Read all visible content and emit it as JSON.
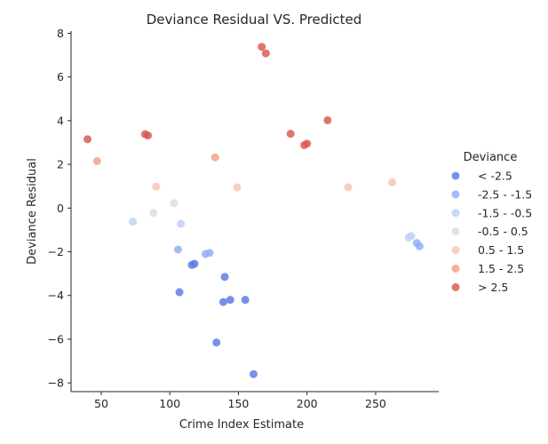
{
  "chart_data": {
    "type": "scatter",
    "title": "Deviance Residual VS. Predicted",
    "xlabel": "Crime Index Estimate",
    "ylabel": "Deviance Residual",
    "xlim": [
      28,
      296
    ],
    "ylim": [
      -8.4,
      8.1
    ],
    "xticks": [
      50,
      100,
      150,
      200,
      250
    ],
    "yticks": [
      -8,
      -6,
      -4,
      -2,
      0,
      2,
      4,
      6,
      8
    ],
    "grid": false,
    "legend": {
      "title": "Deviance",
      "placement": "right",
      "entries": [
        {
          "label": "< -2.5",
          "color": "#5a78e4"
        },
        {
          "label": "-2.5 - -1.5",
          "color": "#8caff7"
        },
        {
          "label": "-1.5 - -0.5",
          "color": "#bed0f6"
        },
        {
          "label": "-0.5 - 0.5",
          "color": "#dcdcdc"
        },
        {
          "label": "0.5 - 1.5",
          "color": "#f6c5ad"
        },
        {
          "label": "1.5 - 2.5",
          "color": "#eea083"
        },
        {
          "label": "> 2.5",
          "color": "#d9574a"
        }
      ]
    },
    "series": [
      {
        "name": "< -2.5",
        "color": "#5a78e4",
        "points": [
          [
            116,
            -2.6
          ],
          [
            118,
            -2.55
          ],
          [
            107,
            -3.85
          ],
          [
            140,
            -3.15
          ],
          [
            139,
            -4.3
          ],
          [
            144,
            -4.2
          ],
          [
            155,
            -4.2
          ],
          [
            134,
            -6.15
          ],
          [
            161,
            -7.6
          ]
        ]
      },
      {
        "name": "-2.5 - -1.5",
        "color": "#8caff7",
        "points": [
          [
            106,
            -1.9
          ],
          [
            126,
            -2.1
          ],
          [
            129,
            -2.05
          ],
          [
            280,
            -1.6
          ],
          [
            282,
            -1.75
          ]
        ]
      },
      {
        "name": "-1.5 - -0.5",
        "color": "#bed0f6",
        "points": [
          [
            73,
            -0.62
          ],
          [
            108,
            -0.72
          ],
          [
            274,
            -1.35
          ],
          [
            276,
            -1.28
          ]
        ]
      },
      {
        "name": "-0.5 - 0.5",
        "color": "#dcdcdc",
        "points": [
          [
            88,
            -0.22
          ],
          [
            103,
            0.22
          ]
        ]
      },
      {
        "name": "0.5 - 1.5",
        "color": "#f6c5ad",
        "points": [
          [
            90,
            0.98
          ],
          [
            149,
            0.95
          ],
          [
            230,
            0.95
          ],
          [
            262,
            1.18
          ]
        ]
      },
      {
        "name": "1.5 - 2.5",
        "color": "#eea083",
        "points": [
          [
            47,
            2.15
          ],
          [
            133,
            2.32
          ]
        ]
      },
      {
        "name": "> 2.5",
        "color": "#d9574a",
        "points": [
          [
            40,
            3.15
          ],
          [
            82,
            3.38
          ],
          [
            84,
            3.32
          ],
          [
            167,
            7.38
          ],
          [
            170,
            7.08
          ],
          [
            188,
            3.4
          ],
          [
            198,
            2.88
          ],
          [
            200,
            2.95
          ],
          [
            215,
            4.02
          ]
        ]
      }
    ]
  }
}
